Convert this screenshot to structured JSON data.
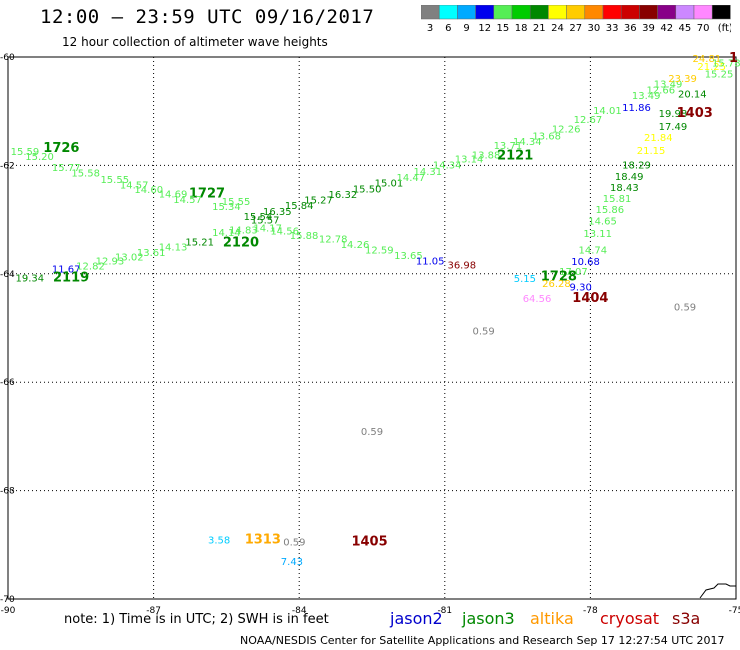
{
  "header": {
    "title": "12:00 — 23:59 UTC 09/16/2017",
    "subtitle": "12 hour collection of altimeter wave heights"
  },
  "color_scale": {
    "labels": [
      "3",
      "6",
      "9",
      "12",
      "15",
      "18",
      "21",
      "24",
      "27",
      "30",
      "33",
      "36",
      "39",
      "42",
      "45",
      "70",
      "(ft)"
    ],
    "colors": [
      "#808080",
      "#00ffff",
      "#00aaff",
      "#0000ee",
      "#55ee55",
      "#00cc00",
      "#008800",
      "#ffff00",
      "#ffcc00",
      "#ff8800",
      "#ff0000",
      "#cc0000",
      "#880000",
      "#880088",
      "#cc88ff",
      "#ff88ff",
      "#000000"
    ]
  },
  "footer": {
    "note": "note: 1) Time is in UTC; 2) SWH is in feet",
    "legend": [
      {
        "name": "jason2",
        "color": "#0000cc"
      },
      {
        "name": "jason3",
        "color": "#008800"
      },
      {
        "name": "altika",
        "color": "#ff9900"
      },
      {
        "name": "cryosat",
        "color": "#cc0000"
      },
      {
        "name": "s3a",
        "color": "#880000"
      }
    ],
    "credit": "NOAA/NESDIS Center for Satellite Applications and Research    Sep 17 12:27:54 UTC 2017"
  },
  "chart_data": {
    "type": "scatter",
    "xlim": [
      -90,
      -75
    ],
    "ylim": [
      -70,
      -60
    ],
    "x_ticks": [
      -90,
      -87,
      -84,
      -81,
      -78,
      -75
    ],
    "y_ticks": [
      -60,
      -62,
      -64,
      -66,
      -68,
      -70
    ],
    "x_tick_labels": [
      "-90",
      "-87",
      "-84",
      "-81",
      "-78",
      "-75"
    ],
    "y_tick_labels": [
      "-60",
      "-62",
      "-64",
      "-66",
      "-68",
      "-70"
    ],
    "grid": true,
    "labels": [
      {
        "x": -89.65,
        "y": -61.73,
        "t": "15.59",
        "c": "#55ee55"
      },
      {
        "x": -89.35,
        "y": -61.83,
        "t": "15.20",
        "c": "#55ee55"
      },
      {
        "x": -88.9,
        "y": -61.68,
        "t": "1726",
        "c": "#008800",
        "big": true
      },
      {
        "x": -88.8,
        "y": -62.03,
        "t": "15.77",
        "c": "#55ee55"
      },
      {
        "x": -88.4,
        "y": -62.13,
        "t": "15.58",
        "c": "#55ee55"
      },
      {
        "x": -87.8,
        "y": -62.25,
        "t": "15.55",
        "c": "#55ee55"
      },
      {
        "x": -87.4,
        "y": -62.35,
        "t": "14.57",
        "c": "#55ee55"
      },
      {
        "x": -87.1,
        "y": -62.44,
        "t": "14.60",
        "c": "#55ee55"
      },
      {
        "x": -86.6,
        "y": -62.52,
        "t": "14.69",
        "c": "#55ee55"
      },
      {
        "x": -85.9,
        "y": -62.52,
        "t": "1727",
        "c": "#008800",
        "big": true
      },
      {
        "x": -86.3,
        "y": -62.62,
        "t": "14.57",
        "c": "#55ee55"
      },
      {
        "x": -85.5,
        "y": -62.75,
        "t": "15.34",
        "c": "#55ee55"
      },
      {
        "x": -85.3,
        "y": -62.66,
        "t": "15.55",
        "c": "#55ee55"
      },
      {
        "x": -84.85,
        "y": -62.93,
        "t": "15.54",
        "c": "#008800"
      },
      {
        "x": -84.7,
        "y": -63.0,
        "t": "15.57",
        "c": "#008800"
      },
      {
        "x": -84.45,
        "y": -62.84,
        "t": "16.35",
        "c": "#008800"
      },
      {
        "x": -84.0,
        "y": -62.73,
        "t": "15.84",
        "c": "#008800"
      },
      {
        "x": -83.6,
        "y": -62.63,
        "t": "15.27",
        "c": "#008800"
      },
      {
        "x": -83.1,
        "y": -62.53,
        "t": "16.32",
        "c": "#008800"
      },
      {
        "x": -82.6,
        "y": -62.43,
        "t": "15.50",
        "c": "#008800"
      },
      {
        "x": -82.15,
        "y": -62.32,
        "t": "15.01",
        "c": "#008800"
      },
      {
        "x": -81.7,
        "y": -62.21,
        "t": "14.47",
        "c": "#55ee55"
      },
      {
        "x": -81.35,
        "y": -62.1,
        "t": "14.31",
        "c": "#55ee55"
      },
      {
        "x": -80.95,
        "y": -61.98,
        "t": "14.34",
        "c": "#55ee55"
      },
      {
        "x": -80.5,
        "y": -61.87,
        "t": "13.14",
        "c": "#55ee55"
      },
      {
        "x": -80.15,
        "y": -61.8,
        "t": "13.88",
        "c": "#55ee55"
      },
      {
        "x": -79.55,
        "y": -61.82,
        "t": "2121",
        "c": "#008800",
        "big": true
      },
      {
        "x": -79.7,
        "y": -61.62,
        "t": "13.71",
        "c": "#55ee55"
      },
      {
        "x": -79.3,
        "y": -61.55,
        "t": "14.34",
        "c": "#55ee55"
      },
      {
        "x": -78.9,
        "y": -61.45,
        "t": "13.68",
        "c": "#55ee55"
      },
      {
        "x": -78.5,
        "y": -61.32,
        "t": "12.26",
        "c": "#55ee55"
      },
      {
        "x": -78.05,
        "y": -61.14,
        "t": "12.67",
        "c": "#55ee55"
      },
      {
        "x": -77.65,
        "y": -60.98,
        "t": "14.01",
        "c": "#55ee55"
      },
      {
        "x": -77.05,
        "y": -60.92,
        "t": "11.86",
        "c": "#0000ee"
      },
      {
        "x": -76.85,
        "y": -60.7,
        "t": "13.49",
        "c": "#55ee55"
      },
      {
        "x": -76.55,
        "y": -60.6,
        "t": "12.66",
        "c": "#55ee55"
      },
      {
        "x": -76.4,
        "y": -60.49,
        "t": "13.49",
        "c": "#55ee55"
      },
      {
        "x": -76.1,
        "y": -60.39,
        "t": "23.39",
        "c": "#ffcc00"
      },
      {
        "x": -75.9,
        "y": -60.67,
        "t": "20.14",
        "c": "#008800"
      },
      {
        "x": -75.6,
        "y": -60.02,
        "t": "24.81",
        "c": "#ffcc00"
      },
      {
        "x": -75.5,
        "y": -60.17,
        "t": "21.25",
        "c": "#ffff00"
      },
      {
        "x": -75.35,
        "y": -60.3,
        "t": "15.25",
        "c": "#55ee55"
      },
      {
        "x": -75.2,
        "y": -60.1,
        "t": "15.78",
        "c": "#55ee55"
      },
      {
        "x": -75.05,
        "y": -60.02,
        "t": "1",
        "c": "#880000",
        "big": true
      },
      {
        "x": -76.3,
        "y": -61.03,
        "t": "19.98",
        "c": "#008800"
      },
      {
        "x": -75.85,
        "y": -61.03,
        "t": "1403",
        "c": "#880000",
        "big": true
      },
      {
        "x": -76.3,
        "y": -61.27,
        "t": "17.49",
        "c": "#008800"
      },
      {
        "x": -76.6,
        "y": -61.48,
        "t": "21.84",
        "c": "#ffff00"
      },
      {
        "x": -76.75,
        "y": -61.72,
        "t": "21.15",
        "c": "#ffff00"
      },
      {
        "x": -77.05,
        "y": -61.98,
        "t": "18.29",
        "c": "#008800"
      },
      {
        "x": -77.2,
        "y": -62.2,
        "t": "18.49",
        "c": "#008800"
      },
      {
        "x": -77.3,
        "y": -62.4,
        "t": "18.43",
        "c": "#008800"
      },
      {
        "x": -77.45,
        "y": -62.6,
        "t": "15.81",
        "c": "#55ee55"
      },
      {
        "x": -77.6,
        "y": -62.8,
        "t": "15.86",
        "c": "#55ee55"
      },
      {
        "x": -77.75,
        "y": -63.02,
        "t": "14.65",
        "c": "#55ee55"
      },
      {
        "x": -77.85,
        "y": -63.25,
        "t": "13.11",
        "c": "#55ee55"
      },
      {
        "x": -77.95,
        "y": -63.55,
        "t": "14.74",
        "c": "#55ee55"
      },
      {
        "x": -78.1,
        "y": -63.76,
        "t": "10.68",
        "c": "#0000ee"
      },
      {
        "x": -78.35,
        "y": -63.95,
        "t": "17.07",
        "c": "#55ee55"
      },
      {
        "x": -78.65,
        "y": -64.05,
        "t": "1728",
        "c": "#008800",
        "big": true
      },
      {
        "x": -78.7,
        "y": -64.17,
        "t": "26.28",
        "c": "#ffcc00"
      },
      {
        "x": -78.2,
        "y": -64.23,
        "t": "9.30",
        "c": "#0000ee"
      },
      {
        "x": -79.35,
        "y": -64.08,
        "t": "5.15",
        "c": "#00ccff"
      },
      {
        "x": -79.1,
        "y": -64.45,
        "t": "64.56",
        "c": "#ff88ff"
      },
      {
        "x": -78.0,
        "y": -64.45,
        "t": "1404",
        "c": "#880000",
        "big": true
      },
      {
        "x": -76.05,
        "y": -64.6,
        "t": "0.59",
        "c": "#808080"
      },
      {
        "x": -80.2,
        "y": -65.05,
        "t": "0.59",
        "c": "#808080"
      },
      {
        "x": -82.5,
        "y": -66.9,
        "t": "0.59",
        "c": "#808080"
      },
      {
        "x": -89.55,
        "y": -64.07,
        "t": "19.34",
        "c": "#008800"
      },
      {
        "x": -88.8,
        "y": -63.9,
        "t": "11.67",
        "c": "#0000ee"
      },
      {
        "x": -88.7,
        "y": -64.07,
        "t": "2119",
        "c": "#008800",
        "big": true
      },
      {
        "x": -88.3,
        "y": -63.85,
        "t": "12.82",
        "c": "#55ee55"
      },
      {
        "x": -87.9,
        "y": -63.75,
        "t": "12.93",
        "c": "#55ee55"
      },
      {
        "x": -87.5,
        "y": -63.68,
        "t": "13.02",
        "c": "#55ee55"
      },
      {
        "x": -87.05,
        "y": -63.6,
        "t": "13.61",
        "c": "#55ee55"
      },
      {
        "x": -86.6,
        "y": -63.5,
        "t": "14.13",
        "c": "#55ee55"
      },
      {
        "x": -86.05,
        "y": -63.4,
        "t": "15.21",
        "c": "#008800"
      },
      {
        "x": -85.2,
        "y": -63.42,
        "t": "2120",
        "c": "#008800",
        "big": true
      },
      {
        "x": -85.5,
        "y": -63.23,
        "t": "14.14",
        "c": "#55ee55"
      },
      {
        "x": -85.15,
        "y": -63.18,
        "t": "14.83",
        "c": "#55ee55"
      },
      {
        "x": -84.65,
        "y": -63.15,
        "t": "14.17",
        "c": "#55ee55"
      },
      {
        "x": -84.3,
        "y": -63.2,
        "t": "14.56",
        "c": "#55ee55"
      },
      {
        "x": -83.9,
        "y": -63.28,
        "t": "15.88",
        "c": "#55ee55"
      },
      {
        "x": -83.3,
        "y": -63.35,
        "t": "12.78",
        "c": "#55ee55"
      },
      {
        "x": -82.85,
        "y": -63.45,
        "t": "14.26",
        "c": "#55ee55"
      },
      {
        "x": -82.35,
        "y": -63.55,
        "t": "12.59",
        "c": "#55ee55"
      },
      {
        "x": -81.75,
        "y": -63.65,
        "t": "13.65",
        "c": "#55ee55"
      },
      {
        "x": -81.3,
        "y": -63.75,
        "t": "11.05",
        "c": "#0000ee"
      },
      {
        "x": -80.65,
        "y": -63.83,
        "t": "36.98",
        "c": "#880000"
      },
      {
        "x": -85.65,
        "y": -68.9,
        "t": "3.58",
        "c": "#00ccff"
      },
      {
        "x": -84.75,
        "y": -68.9,
        "t": "1313",
        "c": "#ffaa00",
        "big": true
      },
      {
        "x": -84.1,
        "y": -68.94,
        "t": "0.59",
        "c": "#808080"
      },
      {
        "x": -84.15,
        "y": -69.3,
        "t": "7.43",
        "c": "#00aaff"
      },
      {
        "x": -82.55,
        "y": -68.94,
        "t": "1405",
        "c": "#880000",
        "big": true
      }
    ]
  }
}
